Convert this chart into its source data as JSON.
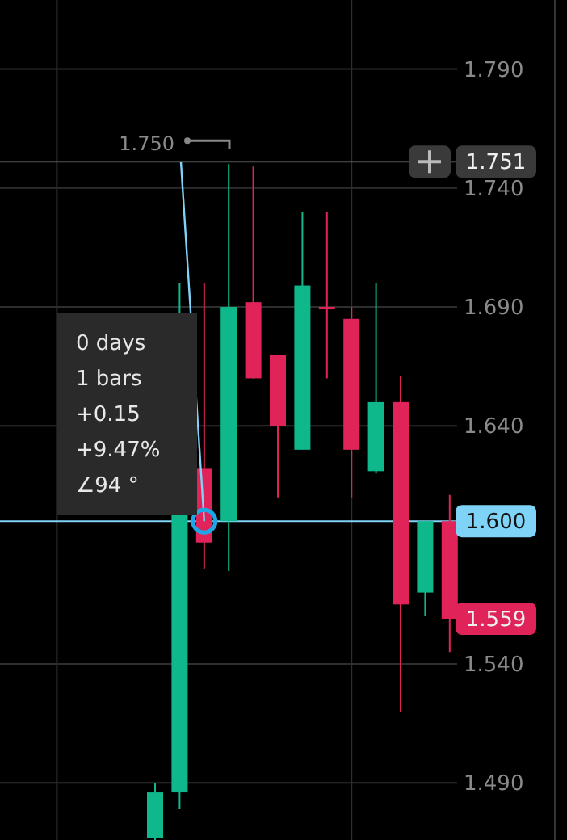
{
  "chart_data": {
    "type": "candlestick",
    "categories": [
      null,
      null,
      null,
      null,
      null,
      null,
      null,
      null,
      null,
      null,
      null,
      null,
      null
    ],
    "ohlc": [
      [
        1.467,
        1.49,
        1.466,
        1.486
      ],
      [
        1.486,
        1.7,
        1.479,
        1.603
      ],
      [
        1.622,
        1.7,
        1.58,
        1.591
      ],
      [
        1.6,
        1.75,
        1.579,
        1.69
      ],
      [
        1.692,
        1.749,
        1.66,
        1.66
      ],
      [
        1.67,
        1.67,
        1.61,
        1.64
      ],
      [
        1.63,
        1.73,
        1.63,
        1.699
      ],
      [
        1.69,
        1.73,
        1.66,
        1.689
      ],
      [
        1.685,
        1.69,
        1.61,
        1.63
      ],
      [
        1.621,
        1.7,
        1.62,
        1.65
      ],
      [
        1.65,
        1.661,
        1.52,
        1.565
      ],
      [
        1.57,
        1.6,
        1.56,
        1.6
      ],
      [
        1.6,
        1.611,
        1.545,
        1.559
      ]
    ],
    "colors": [
      "#0fb88a",
      "#0fb88a",
      "#e0245a",
      "#0fb88a",
      "#e0245a",
      "#e0245a",
      "#0fb88a",
      "#e0245a",
      "#e0245a",
      "#0fb88a",
      "#e0245a",
      "#0fb88a",
      "#e0245a"
    ],
    "ylim": [
      1.466,
      1.819
    ],
    "yticks": [
      {
        "value": 1.49,
        "label": "1.490"
      },
      {
        "value": 1.54,
        "label": "1.540"
      },
      {
        "value": 1.64,
        "label": "1.640"
      },
      {
        "value": 1.69,
        "label": "1.690"
      },
      {
        "value": 1.74,
        "label": "1.740"
      },
      {
        "value": 1.79,
        "label": "1.790"
      }
    ],
    "grid": true,
    "tick_labels": "y",
    "ref_lines": [
      {
        "axis": "y",
        "value": 1.6,
        "label": "1.600",
        "color": "#7fd3f7"
      },
      {
        "axis": "y",
        "value": 1.751,
        "label": "1.751",
        "color": "#555555"
      }
    ],
    "annotations": [
      "0 days",
      "1 bars",
      "+0.15",
      "+9.47%",
      "∠94 °",
      {
        "text": "1.750",
        "y": 1.75
      },
      "1.559"
    ]
  }
}
